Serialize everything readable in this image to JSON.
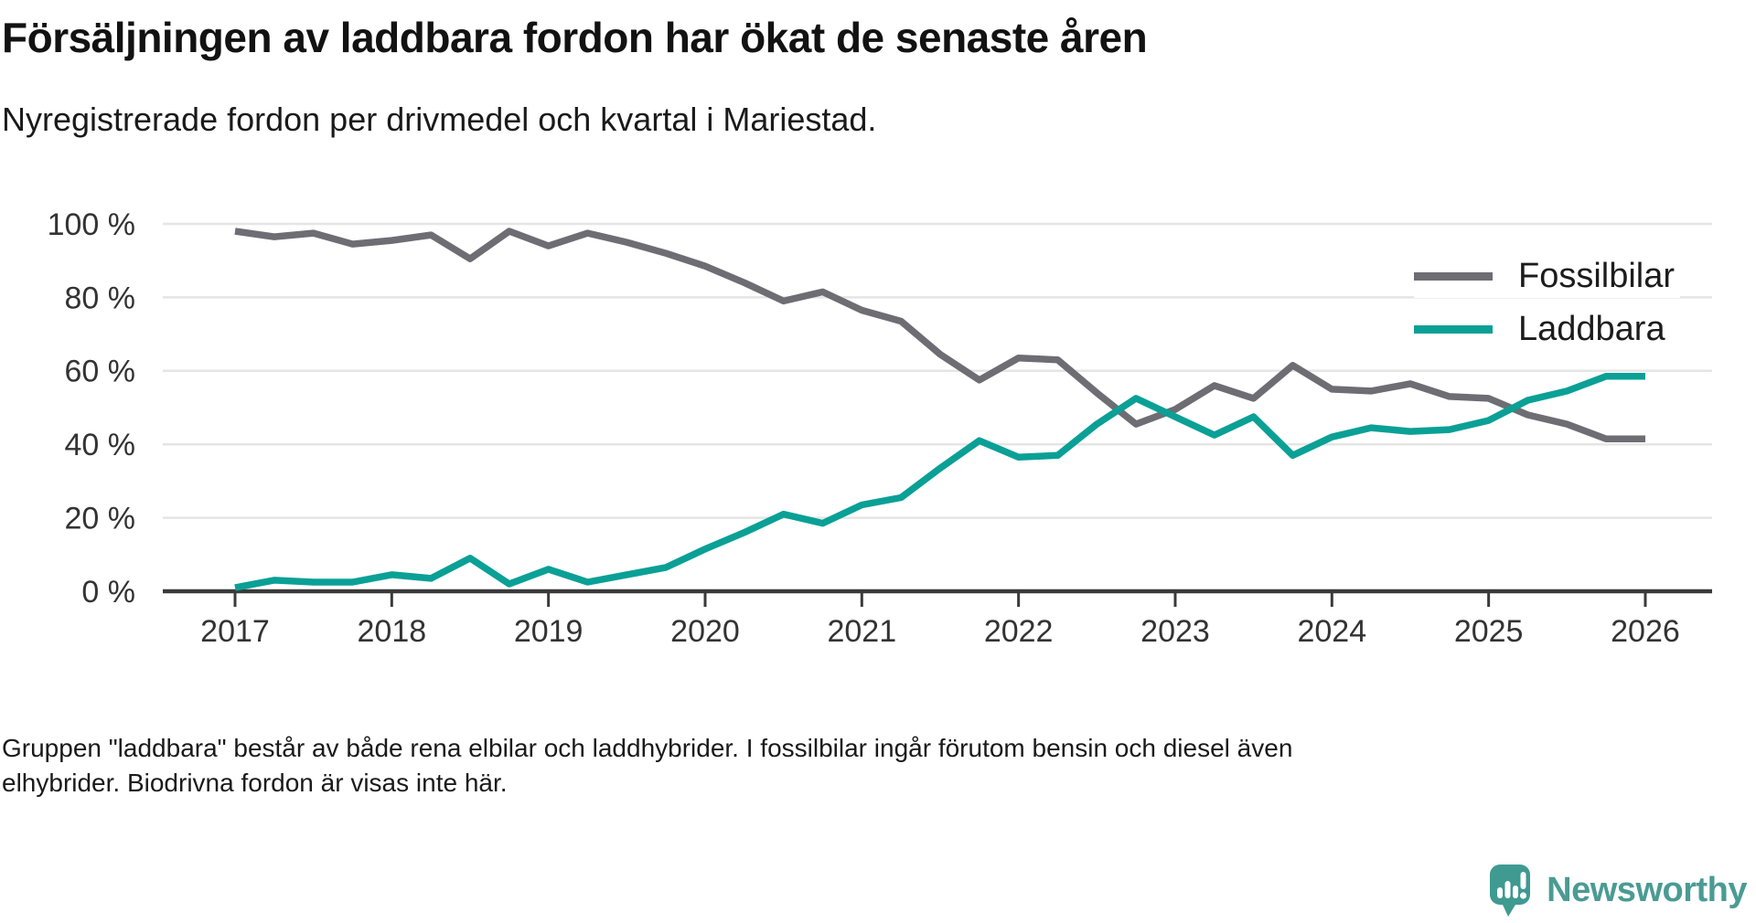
{
  "header": {
    "title": "Försäljningen av laddbara fordon har ökat de senaste åren",
    "subtitle": "Nyregistrerade fordon per drivmedel och kvartal i Mariestad."
  },
  "chart_data": {
    "type": "line",
    "title": "Försäljningen av laddbara fordon har ökat de senaste åren",
    "subtitle": "Nyregistrerade fordon per drivmedel och kvartal i Mariestad.",
    "x_unit": "quarter",
    "x_range": "2017 Q1 – 2026 Q1",
    "points_per_year": 4,
    "x_tick_labels": [
      "2017",
      "2018",
      "2019",
      "2020",
      "2021",
      "2022",
      "2023",
      "2024",
      "2025",
      "2026"
    ],
    "y_tick_labels": [
      "0 %",
      "20 %",
      "40 %",
      "60 %",
      "80 %",
      "100 %"
    ],
    "y_tick_values": [
      0,
      20,
      40,
      60,
      80,
      100
    ],
    "ylim": [
      0,
      100
    ],
    "grid": "horizontal",
    "legend_position": "top-right",
    "series": [
      {
        "name": "Fossilbilar",
        "color": "#6d6d73",
        "values": [
          98,
          96.5,
          97.5,
          94.5,
          95.5,
          97,
          90.5,
          98,
          94,
          97.5,
          95,
          92,
          88.5,
          84,
          79,
          81.5,
          76.5,
          73.5,
          64.5,
          57.5,
          63.5,
          63,
          54,
          45.5,
          49.5,
          56,
          52.5,
          61.5,
          55,
          54.5,
          56.5,
          53,
          52.5,
          48,
          45.5,
          41.5,
          41.5
        ]
      },
      {
        "name": "Laddbara",
        "color": "#0aa096",
        "values": [
          1,
          3,
          2.5,
          2.5,
          4.5,
          3.5,
          9,
          2,
          6,
          2.5,
          4.5,
          6.5,
          11.5,
          16,
          21,
          18.5,
          23.5,
          25.5,
          33.5,
          41,
          36.5,
          37,
          45.5,
          52.5,
          47.5,
          42.5,
          47.5,
          37,
          42,
          44.5,
          43.5,
          44,
          46.5,
          52,
          54.5,
          58.5,
          58.5
        ]
      }
    ]
  },
  "footer": {
    "note_lines": [
      "Gruppen \"laddbara\" består av både rena elbilar och laddhybrider. I fossilbilar ingår förutom bensin och diesel även",
      "elhybrider. Biodrivna fordon är visas inte här."
    ]
  },
  "branding": {
    "logo_text": "Newsworthy",
    "logo_color": "#4a9b93",
    "icon_color": "#3f9a91",
    "icon": "newsworthy-speech-bubble-chart-icon"
  }
}
